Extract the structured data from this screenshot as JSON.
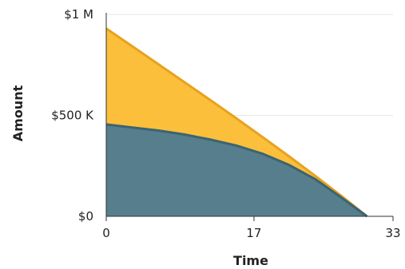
{
  "chart_data": {
    "type": "area",
    "title": "",
    "xlabel": "Time",
    "ylabel": "Amount",
    "x_ticks": [
      0,
      17,
      33
    ],
    "x_tick_labels": [
      "0",
      "17",
      "33"
    ],
    "y_ticks": [
      0,
      500000,
      1000000
    ],
    "y_tick_labels": [
      "$0",
      "$500 K",
      "$1 M"
    ],
    "xlim": [
      0,
      33
    ],
    "ylim": [
      0,
      1000000
    ],
    "grid": "horizontal",
    "colors": {
      "upper_fill": "#fbbf3b",
      "upper_line": "#e8a21d",
      "lower_fill": "#567e8d",
      "lower_line": "#3b6473",
      "grid": "#e6e6e6",
      "axis": "#333333"
    },
    "series": [
      {
        "x": [
          0,
          3,
          6,
          9,
          12,
          15,
          18,
          21,
          24,
          27,
          30
        ],
        "values": [
          930000,
          842000,
          753000,
          664000,
          575000,
          484000,
          392000,
          298000,
          202000,
          103000,
          0
        ]
      },
      {
        "x": [
          0,
          3,
          6,
          9,
          12,
          15,
          18,
          21,
          24,
          27,
          30
        ],
        "values": [
          455000,
          440000,
          425000,
          405000,
          380000,
          350000,
          310000,
          255000,
          185000,
          95000,
          0
        ]
      }
    ]
  }
}
